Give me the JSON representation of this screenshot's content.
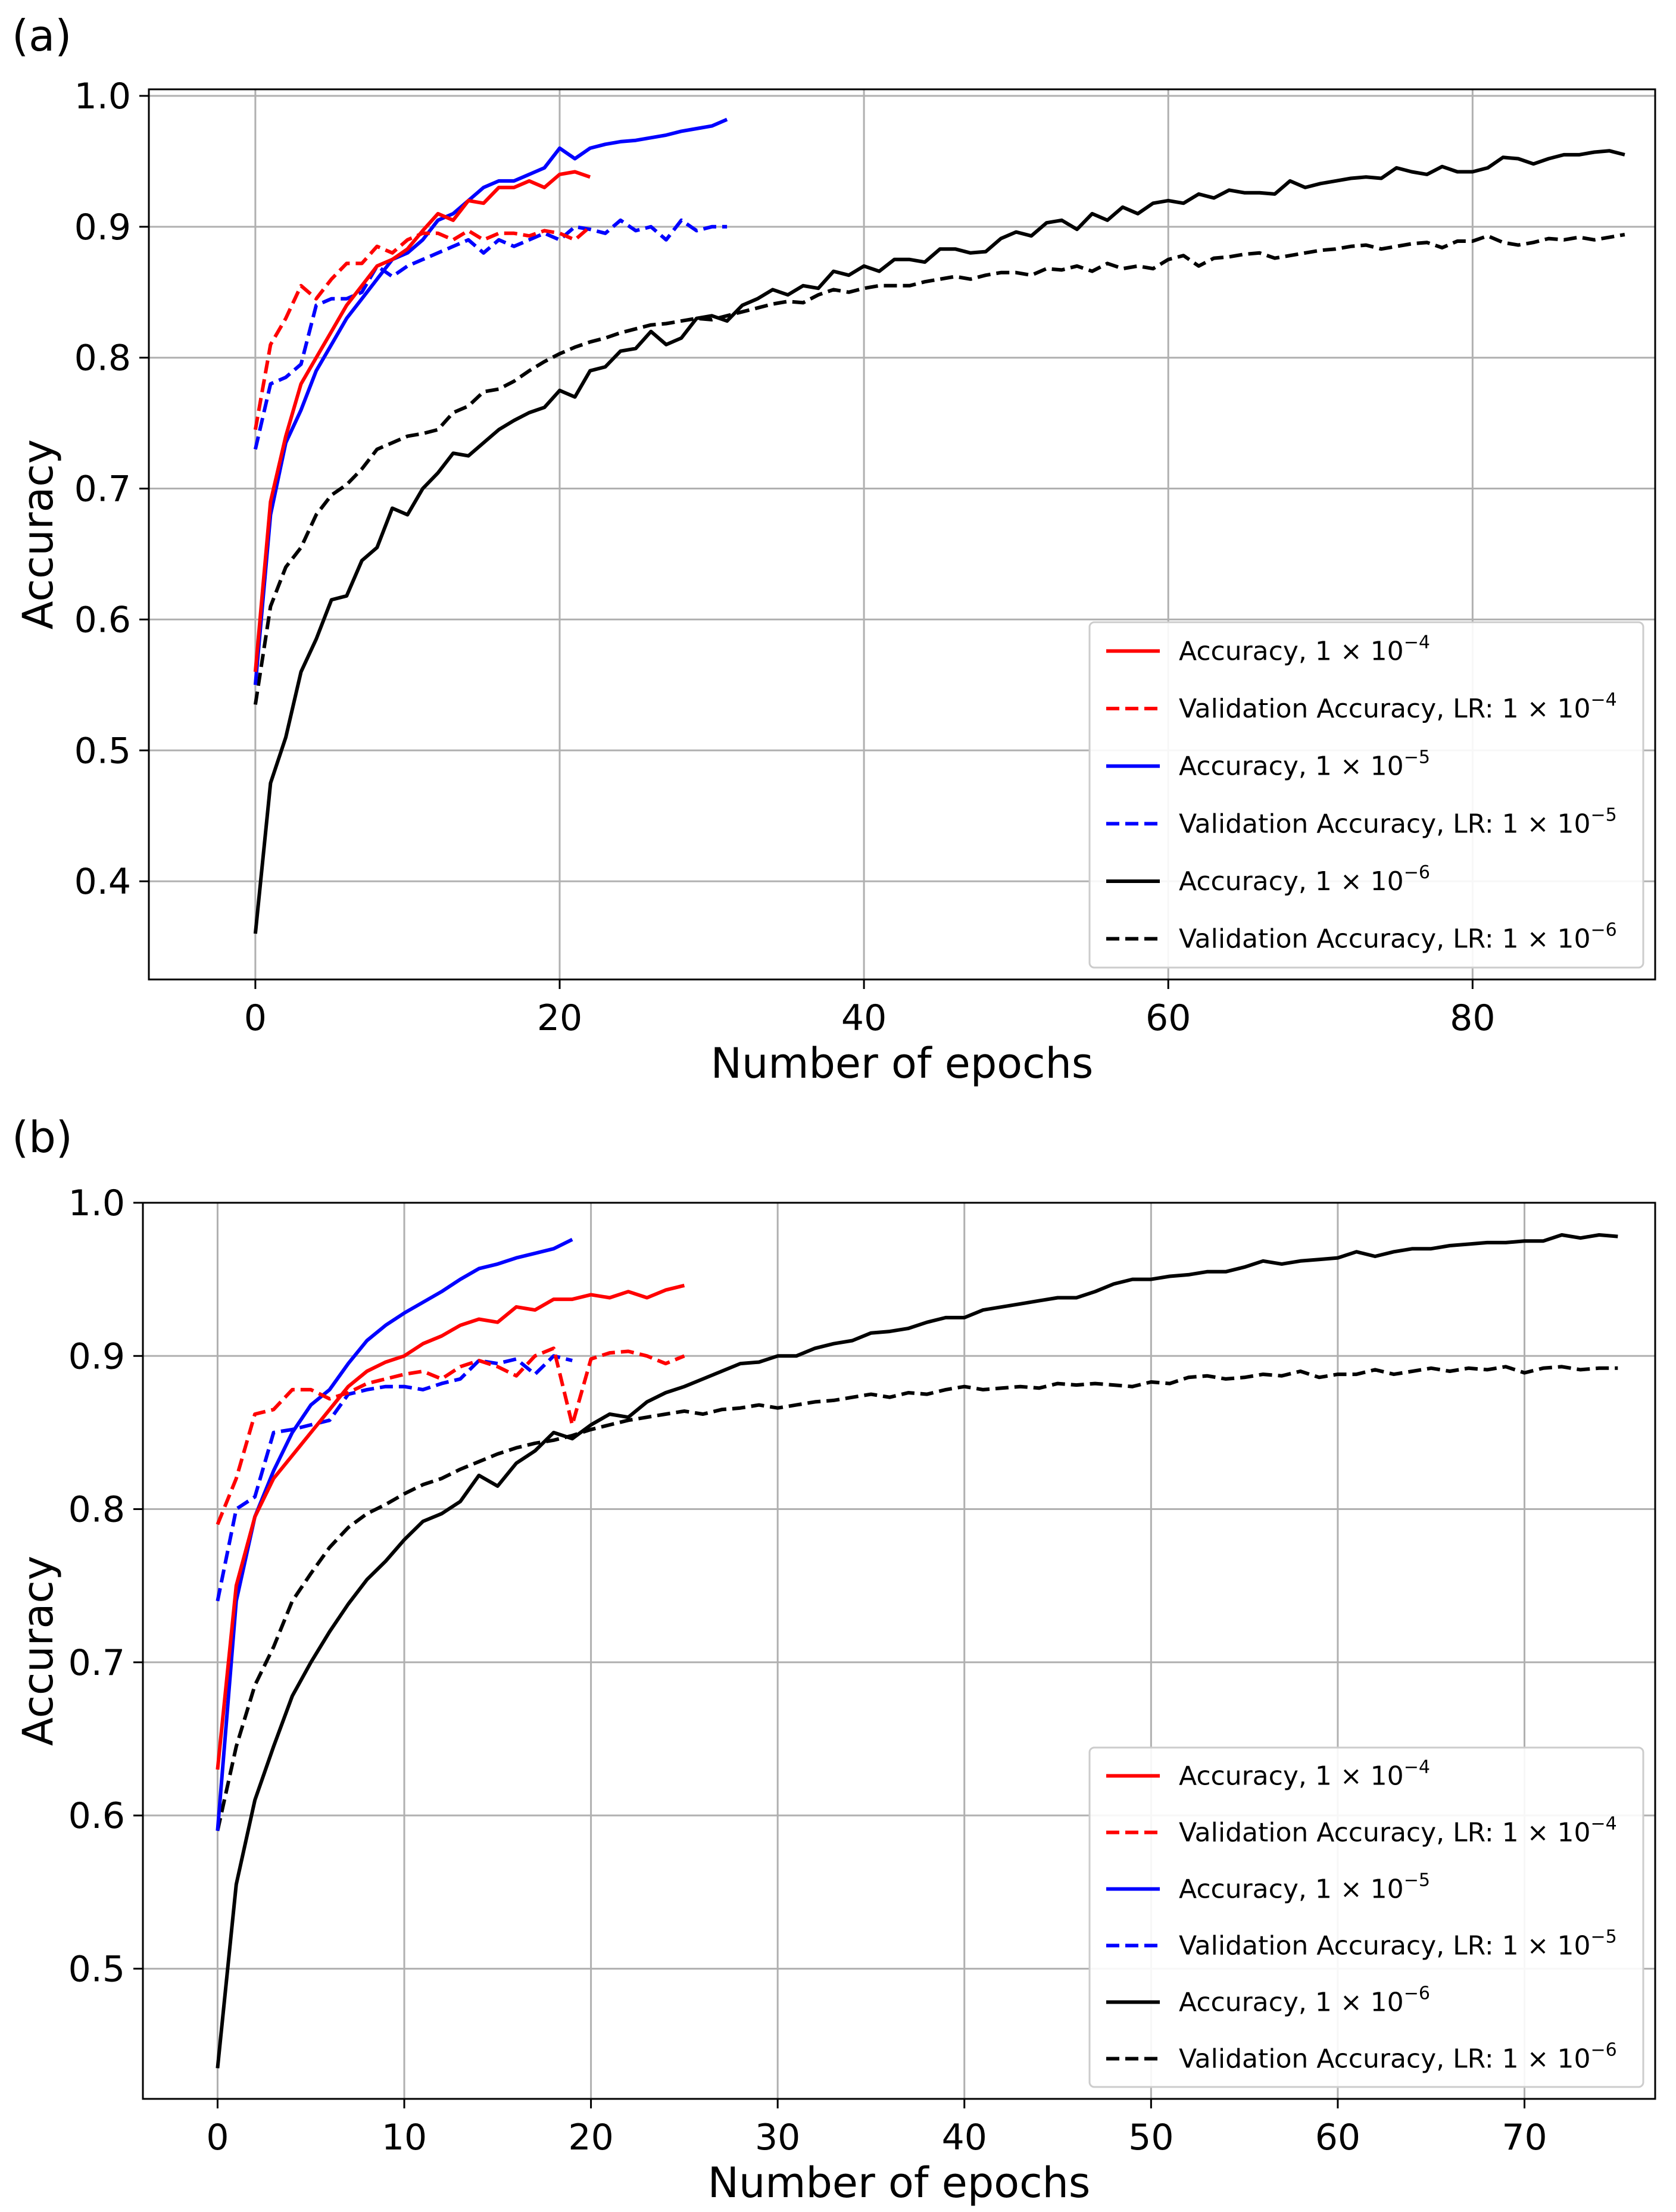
{
  "chart_data": [
    {
      "type": "line",
      "panel_label": "(a)",
      "xlabel": "Number of epochs",
      "ylabel": "Accuracy",
      "xlim": [
        -7,
        92
      ],
      "ylim": [
        0.325,
        1.005
      ],
      "xticks": [
        0,
        20,
        40,
        60,
        80
      ],
      "yticks": [
        0.4,
        0.5,
        0.6,
        0.7,
        0.8,
        0.9,
        1.0
      ],
      "ytick_labels": [
        "0.4",
        "0.5",
        "0.6",
        "0.7",
        "0.8",
        "0.9",
        "1.0"
      ],
      "grid": true,
      "legend_position": "lower-right",
      "series": [
        {
          "name": "Accuracy, 1 × 10^-4",
          "label_main": "Accuracy, 1 × 10",
          "label_exp": "−4",
          "color": "#ff0000",
          "dash": "solid",
          "x_start": 0,
          "values": [
            0.56,
            0.69,
            0.74,
            0.78,
            0.8,
            0.82,
            0.84,
            0.855,
            0.87,
            0.875,
            0.883,
            0.897,
            0.91,
            0.905,
            0.92,
            0.918,
            0.93,
            0.93,
            0.935,
            0.93,
            0.94,
            0.942,
            0.938
          ]
        },
        {
          "name": "Validation Accuracy, LR: 1 × 10^-4",
          "label_main": "Validation Accuracy, LR: 1 × 10",
          "label_exp": "−4",
          "color": "#ff0000",
          "dash": "dashed",
          "x_start": 0,
          "values": [
            0.745,
            0.81,
            0.83,
            0.855,
            0.845,
            0.86,
            0.872,
            0.872,
            0.885,
            0.88,
            0.89,
            0.895,
            0.895,
            0.89,
            0.897,
            0.89,
            0.895,
            0.895,
            0.893,
            0.897,
            0.895,
            0.89,
            0.9
          ]
        },
        {
          "name": "Accuracy, 1 × 10^-5",
          "label_main": "Accuracy, 1 × 10",
          "label_exp": "−5",
          "color": "#0000ff",
          "dash": "solid",
          "x_start": 0,
          "values": [
            0.55,
            0.68,
            0.735,
            0.76,
            0.79,
            0.81,
            0.83,
            0.845,
            0.86,
            0.875,
            0.88,
            0.89,
            0.905,
            0.91,
            0.92,
            0.93,
            0.935,
            0.935,
            0.94,
            0.945,
            0.96,
            0.952,
            0.96,
            0.963,
            0.965,
            0.966,
            0.968,
            0.97,
            0.973,
            0.975,
            0.977,
            0.982
          ]
        },
        {
          "name": "Validation Accuracy, LR: 1 × 10^-5",
          "label_main": "Validation Accuracy, LR: 1 × 10",
          "label_exp": "−5",
          "color": "#0000ff",
          "dash": "dashed",
          "x_start": 0,
          "values": [
            0.73,
            0.78,
            0.785,
            0.795,
            0.84,
            0.845,
            0.845,
            0.85,
            0.87,
            0.862,
            0.87,
            0.875,
            0.88,
            0.885,
            0.89,
            0.88,
            0.89,
            0.885,
            0.89,
            0.895,
            0.89,
            0.9,
            0.898,
            0.895,
            0.905,
            0.897,
            0.9,
            0.89,
            0.905,
            0.897,
            0.9,
            0.9
          ]
        },
        {
          "name": "Accuracy, 1 × 10^-6",
          "label_main": "Accuracy, 1 × 10",
          "label_exp": "−6",
          "color": "#000000",
          "dash": "solid",
          "x_start": 0,
          "values": [
            0.36,
            0.475,
            0.51,
            0.56,
            0.585,
            0.615,
            0.618,
            0.645,
            0.655,
            0.685,
            0.68,
            0.7,
            0.712,
            0.727,
            0.725,
            0.735,
            0.745,
            0.752,
            0.758,
            0.762,
            0.775,
            0.77,
            0.79,
            0.793,
            0.805,
            0.807,
            0.82,
            0.81,
            0.815,
            0.83,
            0.832,
            0.828,
            0.84,
            0.845,
            0.852,
            0.848,
            0.855,
            0.853,
            0.866,
            0.863,
            0.87,
            0.866,
            0.875,
            0.875,
            0.873,
            0.883,
            0.883,
            0.88,
            0.881,
            0.891,
            0.896,
            0.893,
            0.903,
            0.905,
            0.898,
            0.91,
            0.905,
            0.915,
            0.91,
            0.918,
            0.92,
            0.918,
            0.925,
            0.922,
            0.928,
            0.926,
            0.926,
            0.925,
            0.935,
            0.93,
            0.933,
            0.935,
            0.937,
            0.938,
            0.937,
            0.945,
            0.942,
            0.94,
            0.946,
            0.942,
            0.942,
            0.945,
            0.953,
            0.952,
            0.948,
            0.952,
            0.955,
            0.955,
            0.957,
            0.958,
            0.955
          ]
        },
        {
          "name": "Validation Accuracy, LR: 1 × 10^-6",
          "label_main": "Validation Accuracy, LR: 1 × 10",
          "label_exp": "−6",
          "color": "#000000",
          "dash": "dashed",
          "x_start": 0,
          "values": [
            0.535,
            0.61,
            0.64,
            0.655,
            0.68,
            0.695,
            0.703,
            0.715,
            0.73,
            0.735,
            0.74,
            0.742,
            0.745,
            0.758,
            0.763,
            0.774,
            0.776,
            0.782,
            0.79,
            0.797,
            0.803,
            0.808,
            0.812,
            0.815,
            0.819,
            0.822,
            0.825,
            0.826,
            0.828,
            0.83,
            0.829,
            0.832,
            0.835,
            0.838,
            0.841,
            0.843,
            0.842,
            0.848,
            0.852,
            0.85,
            0.853,
            0.855,
            0.855,
            0.855,
            0.858,
            0.86,
            0.862,
            0.86,
            0.863,
            0.865,
            0.865,
            0.863,
            0.868,
            0.867,
            0.87,
            0.866,
            0.872,
            0.868,
            0.87,
            0.868,
            0.875,
            0.878,
            0.87,
            0.876,
            0.877,
            0.879,
            0.88,
            0.876,
            0.878,
            0.88,
            0.882,
            0.883,
            0.885,
            0.886,
            0.883,
            0.885,
            0.887,
            0.888,
            0.884,
            0.889,
            0.889,
            0.893,
            0.888,
            0.886,
            0.888,
            0.891,
            0.89,
            0.892,
            0.89,
            0.892,
            0.894
          ]
        }
      ]
    },
    {
      "type": "line",
      "panel_label": "(b)",
      "xlabel": "Number of epochs",
      "ylabel": "Accuracy",
      "xlim": [
        -4,
        77
      ],
      "ylim": [
        0.415,
        1.0
      ],
      "xticks": [
        0,
        10,
        20,
        30,
        40,
        50,
        60,
        70
      ],
      "yticks": [
        0.5,
        0.6,
        0.7,
        0.8,
        0.9,
        1.0
      ],
      "ytick_labels": [
        "0.5",
        "0.6",
        "0.7",
        "0.8",
        "0.9",
        "1.0"
      ],
      "grid": true,
      "legend_position": "lower-right",
      "series": [
        {
          "name": "Accuracy, 1 × 10^-4",
          "label_main": "Accuracy, 1 × 10",
          "label_exp": "−4",
          "color": "#ff0000",
          "dash": "solid",
          "x_start": 0,
          "values": [
            0.63,
            0.75,
            0.795,
            0.82,
            0.835,
            0.85,
            0.865,
            0.88,
            0.89,
            0.896,
            0.9,
            0.908,
            0.913,
            0.92,
            0.924,
            0.922,
            0.932,
            0.93,
            0.937,
            0.937,
            0.94,
            0.938,
            0.942,
            0.938,
            0.943,
            0.946
          ]
        },
        {
          "name": "Validation Accuracy, LR: 1 × 10^-4",
          "label_main": "Validation Accuracy, LR: 1 × 10",
          "label_exp": "−4",
          "color": "#ff0000",
          "dash": "dashed",
          "x_start": 0,
          "values": [
            0.79,
            0.82,
            0.862,
            0.865,
            0.878,
            0.878,
            0.872,
            0.876,
            0.882,
            0.885,
            0.888,
            0.89,
            0.885,
            0.893,
            0.897,
            0.893,
            0.887,
            0.9,
            0.905,
            0.855,
            0.898,
            0.902,
            0.903,
            0.9,
            0.895,
            0.9
          ]
        },
        {
          "name": "Accuracy, 1 × 10^-5",
          "label_main": "Accuracy, 1 × 10",
          "label_exp": "−5",
          "color": "#0000ff",
          "dash": "solid",
          "x_start": 0,
          "values": [
            0.59,
            0.74,
            0.795,
            0.825,
            0.85,
            0.868,
            0.878,
            0.895,
            0.91,
            0.92,
            0.928,
            0.935,
            0.942,
            0.95,
            0.957,
            0.96,
            0.964,
            0.967,
            0.97,
            0.976
          ]
        },
        {
          "name": "Validation Accuracy, LR: 1 × 10^-5",
          "label_main": "Validation Accuracy, LR: 1 × 10",
          "label_exp": "−5",
          "color": "#0000ff",
          "dash": "dashed",
          "x_start": 0,
          "values": [
            0.74,
            0.8,
            0.808,
            0.85,
            0.852,
            0.855,
            0.858,
            0.875,
            0.878,
            0.88,
            0.88,
            0.878,
            0.882,
            0.885,
            0.897,
            0.895,
            0.898,
            0.888,
            0.9,
            0.897
          ]
        },
        {
          "name": "Accuracy, 1 × 10^-6",
          "label_main": "Accuracy, 1 × 10",
          "label_exp": "−6",
          "color": "#000000",
          "dash": "solid",
          "x_start": 0,
          "values": [
            0.435,
            0.555,
            0.61,
            0.645,
            0.678,
            0.7,
            0.72,
            0.738,
            0.754,
            0.766,
            0.78,
            0.792,
            0.797,
            0.805,
            0.822,
            0.815,
            0.83,
            0.838,
            0.85,
            0.846,
            0.855,
            0.862,
            0.86,
            0.87,
            0.876,
            0.88,
            0.885,
            0.89,
            0.895,
            0.896,
            0.9,
            0.9,
            0.905,
            0.908,
            0.91,
            0.915,
            0.916,
            0.918,
            0.922,
            0.925,
            0.925,
            0.93,
            0.932,
            0.934,
            0.936,
            0.938,
            0.938,
            0.942,
            0.947,
            0.95,
            0.95,
            0.952,
            0.953,
            0.955,
            0.955,
            0.958,
            0.962,
            0.96,
            0.962,
            0.963,
            0.964,
            0.968,
            0.965,
            0.968,
            0.97,
            0.97,
            0.972,
            0.973,
            0.974,
            0.974,
            0.975,
            0.975,
            0.979,
            0.977,
            0.979,
            0.978
          ]
        },
        {
          "name": "Validation Accuracy, LR: 1 × 10^-6",
          "label_main": "Validation Accuracy, LR: 1 × 10",
          "label_exp": "−6",
          "color": "#000000",
          "dash": "dashed",
          "x_start": 0,
          "values": [
            0.59,
            0.645,
            0.685,
            0.71,
            0.74,
            0.758,
            0.775,
            0.788,
            0.797,
            0.803,
            0.81,
            0.816,
            0.82,
            0.826,
            0.831,
            0.836,
            0.84,
            0.843,
            0.845,
            0.848,
            0.852,
            0.855,
            0.858,
            0.86,
            0.862,
            0.864,
            0.862,
            0.865,
            0.866,
            0.868,
            0.866,
            0.868,
            0.87,
            0.871,
            0.873,
            0.875,
            0.873,
            0.876,
            0.875,
            0.878,
            0.88,
            0.878,
            0.879,
            0.88,
            0.879,
            0.882,
            0.881,
            0.882,
            0.881,
            0.88,
            0.883,
            0.882,
            0.886,
            0.887,
            0.885,
            0.886,
            0.888,
            0.887,
            0.89,
            0.886,
            0.888,
            0.888,
            0.891,
            0.888,
            0.89,
            0.892,
            0.89,
            0.892,
            0.891,
            0.893,
            0.889,
            0.892,
            0.893,
            0.891,
            0.892,
            0.892
          ]
        }
      ]
    }
  ]
}
